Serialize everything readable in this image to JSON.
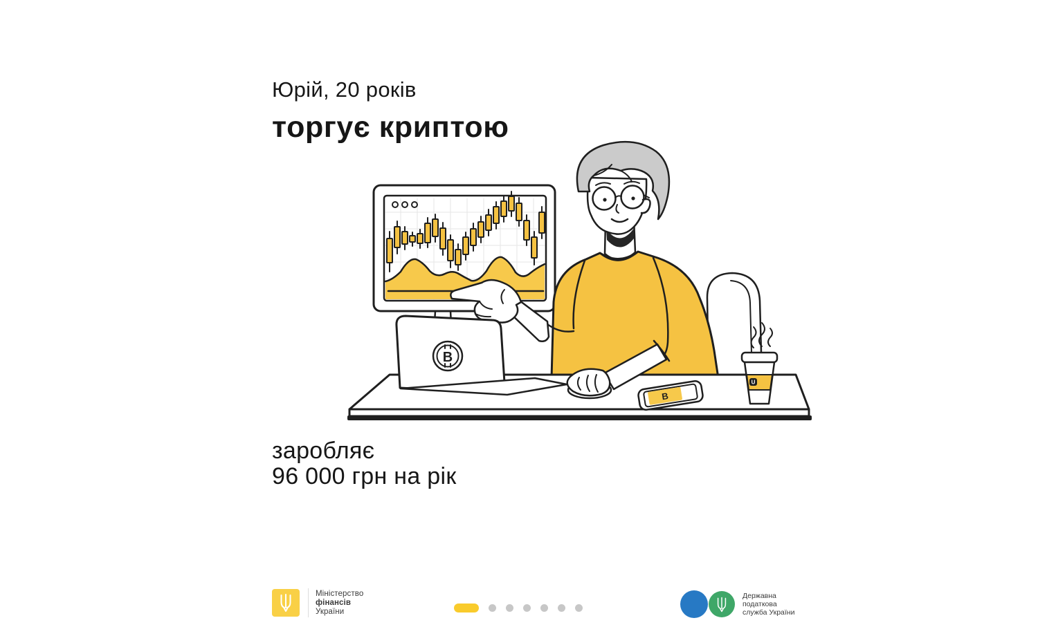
{
  "headline": {
    "line1": "Юрій, 20 років",
    "line2": "торгує криптою"
  },
  "income": {
    "line1": "заробляє",
    "line2": "96 000 грн на рік"
  },
  "illustration": {
    "accent": "#F5C242",
    "area_fill": "#F7C94B",
    "line": "#1F1F1F",
    "hair": "#CBCBCB",
    "grid": "#E6E6E6",
    "laptop_logo": "B",
    "phone_logo": "B",
    "cup_logo": "U",
    "candles": [
      [
        68,
        150,
        185,
        140,
        198
      ],
      [
        79,
        133,
        163,
        125,
        172
      ],
      [
        90,
        140,
        158,
        133,
        166
      ],
      [
        101,
        146,
        155,
        141,
        161
      ],
      [
        112,
        143,
        157,
        137,
        164
      ],
      [
        123,
        128,
        156,
        120,
        163
      ],
      [
        134,
        122,
        147,
        115,
        155
      ],
      [
        145,
        135,
        165,
        127,
        174
      ],
      [
        156,
        152,
        182,
        145,
        192
      ],
      [
        167,
        166,
        188,
        158,
        196
      ],
      [
        178,
        148,
        173,
        141,
        181
      ],
      [
        189,
        136,
        160,
        128,
        168
      ],
      [
        200,
        126,
        148,
        118,
        156
      ],
      [
        211,
        116,
        138,
        108,
        146
      ],
      [
        222,
        104,
        128,
        97,
        136
      ],
      [
        233,
        96,
        118,
        89,
        126
      ],
      [
        244,
        89,
        110,
        82,
        118
      ],
      [
        255,
        99,
        124,
        91,
        132
      ],
      [
        266,
        124,
        152,
        116,
        160
      ],
      [
        277,
        148,
        178,
        140,
        188
      ],
      [
        288,
        112,
        142,
        104,
        150
      ]
    ]
  },
  "footer": {
    "minfin": {
      "line1": "Міністерство",
      "line2": "фінансів",
      "line3": "України",
      "badge_color": "#F9D046"
    },
    "pagination": {
      "count": 7,
      "active_index": 0,
      "active_color": "#F9CB2C",
      "dot_color": "#C7C7C7"
    },
    "tax": {
      "line1": "Державна",
      "line2": "податкова",
      "line3": "служба України",
      "blue": "#2779C4",
      "green": "#3FA768"
    }
  }
}
